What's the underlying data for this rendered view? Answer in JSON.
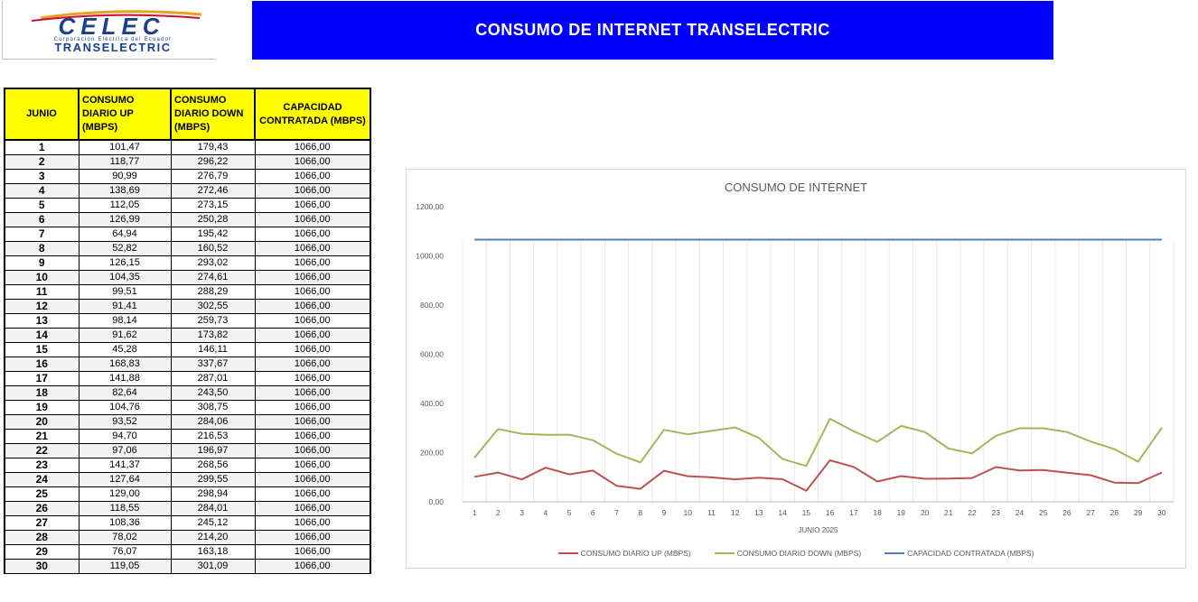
{
  "logo": {
    "mark": "CELEC",
    "subtitle": "Corporación Eléctrica del Ecuador",
    "brand": "TRANSELECTRIC"
  },
  "page_title": "CONSUMO DE INTERNET TRANSELECTRIC",
  "table": {
    "headers": [
      "JUNIO",
      "CONSUMO DIARIO UP (MBPS)",
      "CONSUMO DIARIO DOWN (MBPS)",
      "CAPACIDAD CONTRATADA (MBPS)"
    ],
    "rows": [
      [
        "1",
        "101,47",
        "179,43",
        "1066,00"
      ],
      [
        "2",
        "118,77",
        "296,22",
        "1066,00"
      ],
      [
        "3",
        "90,99",
        "276,79",
        "1066,00"
      ],
      [
        "4",
        "138,69",
        "272,46",
        "1066,00"
      ],
      [
        "5",
        "112,05",
        "273,15",
        "1066,00"
      ],
      [
        "6",
        "126,99",
        "250,28",
        "1066,00"
      ],
      [
        "7",
        "64,94",
        "195,42",
        "1066,00"
      ],
      [
        "8",
        "52,82",
        "160,52",
        "1066,00"
      ],
      [
        "9",
        "126,15",
        "293,02",
        "1066,00"
      ],
      [
        "10",
        "104,35",
        "274,61",
        "1066,00"
      ],
      [
        "11",
        "99,51",
        "288,29",
        "1066,00"
      ],
      [
        "12",
        "91,41",
        "302,55",
        "1066,00"
      ],
      [
        "13",
        "98,14",
        "259,73",
        "1066,00"
      ],
      [
        "14",
        "91,62",
        "173,82",
        "1066,00"
      ],
      [
        "15",
        "45,28",
        "146,11",
        "1066,00"
      ],
      [
        "16",
        "168,83",
        "337,67",
        "1066,00"
      ],
      [
        "17",
        "141,88",
        "287,01",
        "1066,00"
      ],
      [
        "18",
        "82,64",
        "243,50",
        "1066,00"
      ],
      [
        "19",
        "104,76",
        "308,75",
        "1066,00"
      ],
      [
        "20",
        "93,52",
        "284,06",
        "1066,00"
      ],
      [
        "21",
        "94,70",
        "216,53",
        "1066,00"
      ],
      [
        "22",
        "97,06",
        "196,97",
        "1066,00"
      ],
      [
        "23",
        "141,37",
        "268,56",
        "1066,00"
      ],
      [
        "24",
        "127,64",
        "299,55",
        "1066,00"
      ],
      [
        "25",
        "129,00",
        "298,94",
        "1066,00"
      ],
      [
        "26",
        "118,55",
        "284,01",
        "1066,00"
      ],
      [
        "27",
        "108,36",
        "245,12",
        "1066,00"
      ],
      [
        "28",
        "78,02",
        "214,20",
        "1066,00"
      ],
      [
        "29",
        "76,07",
        "163,18",
        "1066,00"
      ],
      [
        "30",
        "119,05",
        "301,09",
        "1066,00"
      ]
    ]
  },
  "chart_data": {
    "type": "line",
    "title": "CONSUMO DE INTERNET",
    "xlabel": "JUNIO 2025",
    "ylabel": "",
    "ylim": [
      0,
      1200
    ],
    "y_ticks": [
      "0,00",
      "200,00",
      "400,00",
      "600,00",
      "800,00",
      "1000,00",
      "1200,00"
    ],
    "grid": "vertical",
    "legend": "bottom",
    "x": [
      1,
      2,
      3,
      4,
      5,
      6,
      7,
      8,
      9,
      10,
      11,
      12,
      13,
      14,
      15,
      16,
      17,
      18,
      19,
      20,
      21,
      22,
      23,
      24,
      25,
      26,
      27,
      28,
      29,
      30
    ],
    "series": [
      {
        "name": "CONSUMO DIARIO UP (MBPS)",
        "color": "#c0504d",
        "values": [
          101.47,
          118.77,
          90.99,
          138.69,
          112.05,
          126.99,
          64.94,
          52.82,
          126.15,
          104.35,
          99.51,
          91.41,
          98.14,
          91.62,
          45.28,
          168.83,
          141.88,
          82.64,
          104.76,
          93.52,
          94.7,
          97.06,
          141.37,
          127.64,
          129.0,
          118.55,
          108.36,
          78.02,
          76.07,
          119.05
        ]
      },
      {
        "name": "CONSUMO DIARIO DOWN (MBPS)",
        "color": "#9bbb59",
        "values": [
          179.43,
          296.22,
          276.79,
          272.46,
          273.15,
          250.28,
          195.42,
          160.52,
          293.02,
          274.61,
          288.29,
          302.55,
          259.73,
          173.82,
          146.11,
          337.67,
          287.01,
          243.5,
          308.75,
          284.06,
          216.53,
          196.97,
          268.56,
          299.55,
          298.94,
          284.01,
          245.12,
          214.2,
          163.18,
          301.09
        ]
      },
      {
        "name": "CAPACIDAD CONTRATADA (MBPS)",
        "color": "#4f81bd",
        "values": [
          1066,
          1066,
          1066,
          1066,
          1066,
          1066,
          1066,
          1066,
          1066,
          1066,
          1066,
          1066,
          1066,
          1066,
          1066,
          1066,
          1066,
          1066,
          1066,
          1066,
          1066,
          1066,
          1066,
          1066,
          1066,
          1066,
          1066,
          1066,
          1066,
          1066
        ]
      }
    ]
  }
}
